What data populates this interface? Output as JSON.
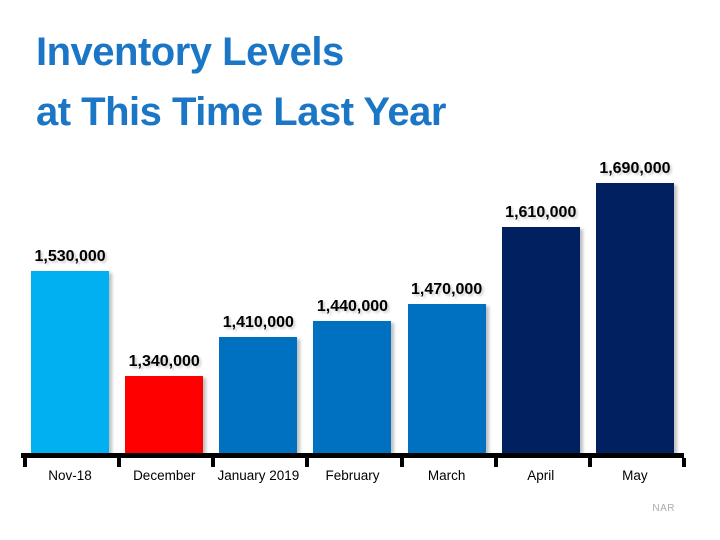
{
  "title": {
    "line1": "Inventory Levels",
    "line2": "at This Time Last Year"
  },
  "source": "NAR",
  "colors": {
    "title_text": "#1B76C5",
    "axis": "#000000",
    "value_label_text": "#000000",
    "source_text": "#ABABAB",
    "highlight_cyan": "#00B0F0",
    "highlight_red": "#FF0000",
    "mid_blue": "#0070C0",
    "dark_navy": "#002060"
  },
  "chart_data": {
    "type": "bar",
    "title": "Inventory Levels at This Time Last Year",
    "categories": [
      "Nov-18",
      "December",
      "January 2019",
      "February",
      "March",
      "April",
      "May"
    ],
    "values": [
      1530000,
      1340000,
      1410000,
      1440000,
      1470000,
      1610000,
      1690000
    ],
    "value_labels": [
      "1,530,000",
      "1,340,000",
      "1,410,000",
      "1,440,000",
      "1,470,000",
      "1,610,000",
      "1,690,000"
    ],
    "bar_colors": [
      "#00B0F0",
      "#FF0000",
      "#0070C0",
      "#0070C0",
      "#0070C0",
      "#002060",
      "#002060"
    ],
    "xlabel": "",
    "ylabel": "",
    "ylim": [
      1200000,
      1690000
    ],
    "gridlines": false,
    "legend": "none",
    "y_axis_visible": false,
    "data_labels": "above bars",
    "source_note": "NAR"
  }
}
